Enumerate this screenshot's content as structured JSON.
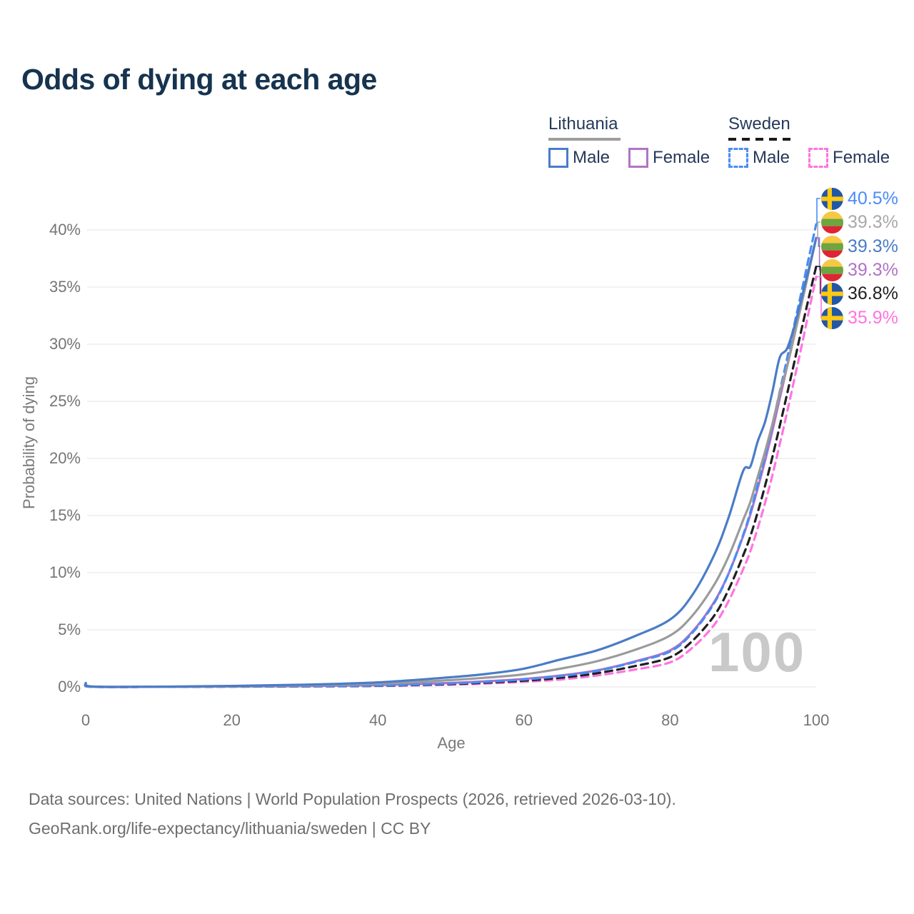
{
  "title": "Odds of dying at each age",
  "legend": {
    "groups": [
      {
        "name": "Lithuania",
        "underline_style": "solid",
        "underline_color": "#9e9e9e",
        "items": [
          {
            "label": "Male",
            "color": "#4a7cc7",
            "dashed": false
          },
          {
            "label": "Female",
            "color": "#b173c6",
            "dashed": false
          }
        ]
      },
      {
        "name": "Sweden",
        "underline_style": "dashed",
        "underline_color": "#1a1a1a",
        "items": [
          {
            "label": "Male",
            "color": "#4a8cf5",
            "dashed": true
          },
          {
            "label": "Female",
            "color": "#ff74e0",
            "dashed": true
          }
        ]
      }
    ]
  },
  "end_labels": [
    {
      "flag": "sweden",
      "series": "se_male",
      "text": "40.5%",
      "color": "#4a8cf5"
    },
    {
      "flag": "lithuania",
      "series": "lt_both",
      "text": "39.3%",
      "color": "#a9a9a9"
    },
    {
      "flag": "lithuania",
      "series": "lt_male",
      "text": "39.3%",
      "color": "#4a7cc7"
    },
    {
      "flag": "lithuania",
      "series": "lt_female",
      "text": "39.3%",
      "color": "#b173c6"
    },
    {
      "flag": "sweden",
      "series": "se_both",
      "text": "36.8%",
      "color": "#1f1f1f"
    },
    {
      "flag": "sweden",
      "series": "se_female",
      "text": "35.9%",
      "color": "#ff74e0"
    }
  ],
  "chart_data": {
    "type": "line",
    "title": "Odds of dying at each age",
    "xlabel": "Age",
    "ylabel": "Probability of dying",
    "xlim": [
      0,
      100
    ],
    "ylim": [
      0,
      43
    ],
    "xticks": [
      0,
      20,
      40,
      60,
      80,
      100
    ],
    "yticks": [
      "0%",
      "5%",
      "10%",
      "15%",
      "20%",
      "25%",
      "30%",
      "35%",
      "40%"
    ],
    "grid": "horizontal",
    "legend_position": "top-right",
    "age_indicator": "100",
    "x": [
      0,
      1,
      10,
      20,
      30,
      40,
      50,
      55,
      60,
      65,
      70,
      75,
      80,
      83,
      86,
      88,
      90,
      91,
      92,
      93,
      94,
      95,
      96,
      97,
      98,
      99,
      100
    ],
    "series": [
      {
        "id": "lt_female",
        "name": "Lithuania Female",
        "color": "#b173c6",
        "dashed": false,
        "end_value_pct": 39.3,
        "values": [
          0.28,
          0.02,
          0.01,
          0.035,
          0.07,
          0.16,
          0.35,
          0.5,
          0.7,
          1.0,
          1.45,
          2.2,
          3.2,
          4.8,
          7.4,
          9.9,
          13.2,
          15.1,
          17.4,
          19.8,
          22.4,
          25.2,
          28.0,
          30.9,
          33.7,
          36.5,
          39.3
        ]
      },
      {
        "id": "se_female",
        "name": "Sweden Female",
        "color": "#ff74e0",
        "dashed": true,
        "end_value_pct": 35.9,
        "values": [
          0.16,
          0.01,
          0.007,
          0.02,
          0.04,
          0.08,
          0.2,
          0.3,
          0.45,
          0.65,
          1.0,
          1.5,
          2.15,
          3.4,
          5.4,
          7.5,
          10.3,
          11.9,
          13.9,
          16.1,
          18.5,
          21.2,
          24.0,
          26.9,
          29.8,
          32.9,
          35.9
        ]
      },
      {
        "id": "se_both",
        "name": "Sweden (both sexes)",
        "color": "#1f1f1f",
        "dashed": true,
        "end_value_pct": 36.8,
        "values": [
          0.18,
          0.012,
          0.008,
          0.03,
          0.05,
          0.1,
          0.25,
          0.38,
          0.55,
          0.8,
          1.2,
          1.8,
          2.6,
          4.0,
          6.2,
          8.5,
          11.5,
          13.2,
          15.3,
          17.6,
          20.1,
          22.8,
          25.6,
          28.4,
          31.3,
          34.1,
          36.8
        ]
      },
      {
        "id": "se_male",
        "name": "Sweden Male",
        "color": "#4a8cf5",
        "dashed": true,
        "end_value_pct": 40.5,
        "values": [
          0.2,
          0.015,
          0.01,
          0.04,
          0.06,
          0.12,
          0.3,
          0.45,
          0.65,
          0.95,
          1.4,
          2.15,
          3.1,
          4.7,
          7.3,
          9.9,
          13.3,
          15.3,
          17.7,
          20.2,
          22.9,
          25.8,
          28.7,
          31.7,
          34.6,
          37.6,
          40.5
        ]
      },
      {
        "id": "lt_both",
        "name": "Lithuania (both sexes)",
        "color": "#9b9b9b",
        "dashed": false,
        "end_value_pct": 39.3,
        "values": [
          0.3,
          0.025,
          0.015,
          0.055,
          0.13,
          0.28,
          0.6,
          0.82,
          1.1,
          1.6,
          2.25,
          3.2,
          4.5,
          6.2,
          8.9,
          11.4,
          14.6,
          16.2,
          18.4,
          20.6,
          23.0,
          25.7,
          28.0,
          30.7,
          33.5,
          36.4,
          39.3
        ]
      },
      {
        "id": "lt_male",
        "name": "Lithuania Male",
        "color": "#4a7cc7",
        "dashed": false,
        "end_value_pct": 39.3,
        "values": [
          0.35,
          0.03,
          0.02,
          0.09,
          0.2,
          0.4,
          0.85,
          1.15,
          1.6,
          2.4,
          3.2,
          4.4,
          5.9,
          8.0,
          11.5,
          14.8,
          18.9,
          19.3,
          21.5,
          23.2,
          25.8,
          28.8,
          29.6,
          31.5,
          34.0,
          36.6,
          39.3
        ]
      }
    ]
  },
  "footer": {
    "line1": "Data sources: United Nations | World Population Prospects (2026, retrieved 2026-03-10).",
    "line2": "GeoRank.org/life-expectancy/lithuania/sweden | CC BY"
  }
}
